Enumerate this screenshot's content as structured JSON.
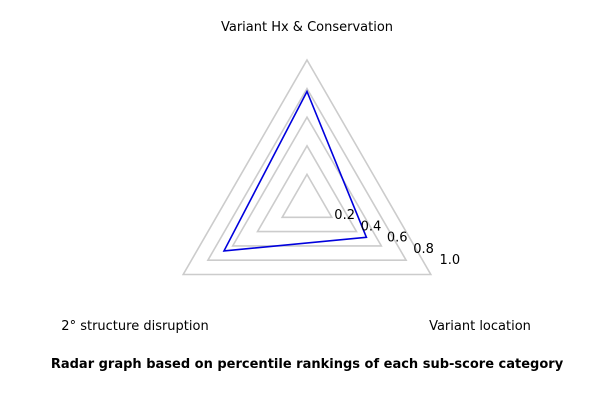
{
  "caption": "Radar graph based on percentile rankings of each sub-score category",
  "colors": {
    "grid": "#cccccc",
    "series": "#0000dd",
    "text": "#000000"
  },
  "chart_data": {
    "type": "radar",
    "axes": [
      "Variant Hx & Conservation",
      "Variant location",
      "2° structure disruption"
    ],
    "rlim": [
      0,
      1.0
    ],
    "rticks": [
      0.2,
      0.4,
      0.6,
      0.8,
      1.0
    ],
    "rtick_labels": [
      "0.2",
      "0.4",
      "0.6",
      "0.8",
      "1.0"
    ],
    "series": [
      {
        "values": [
          0.78,
          0.48,
          0.67
        ]
      }
    ],
    "grid": true,
    "legend": false,
    "caption": "Radar graph based on percentile rankings of each sub-score category"
  }
}
